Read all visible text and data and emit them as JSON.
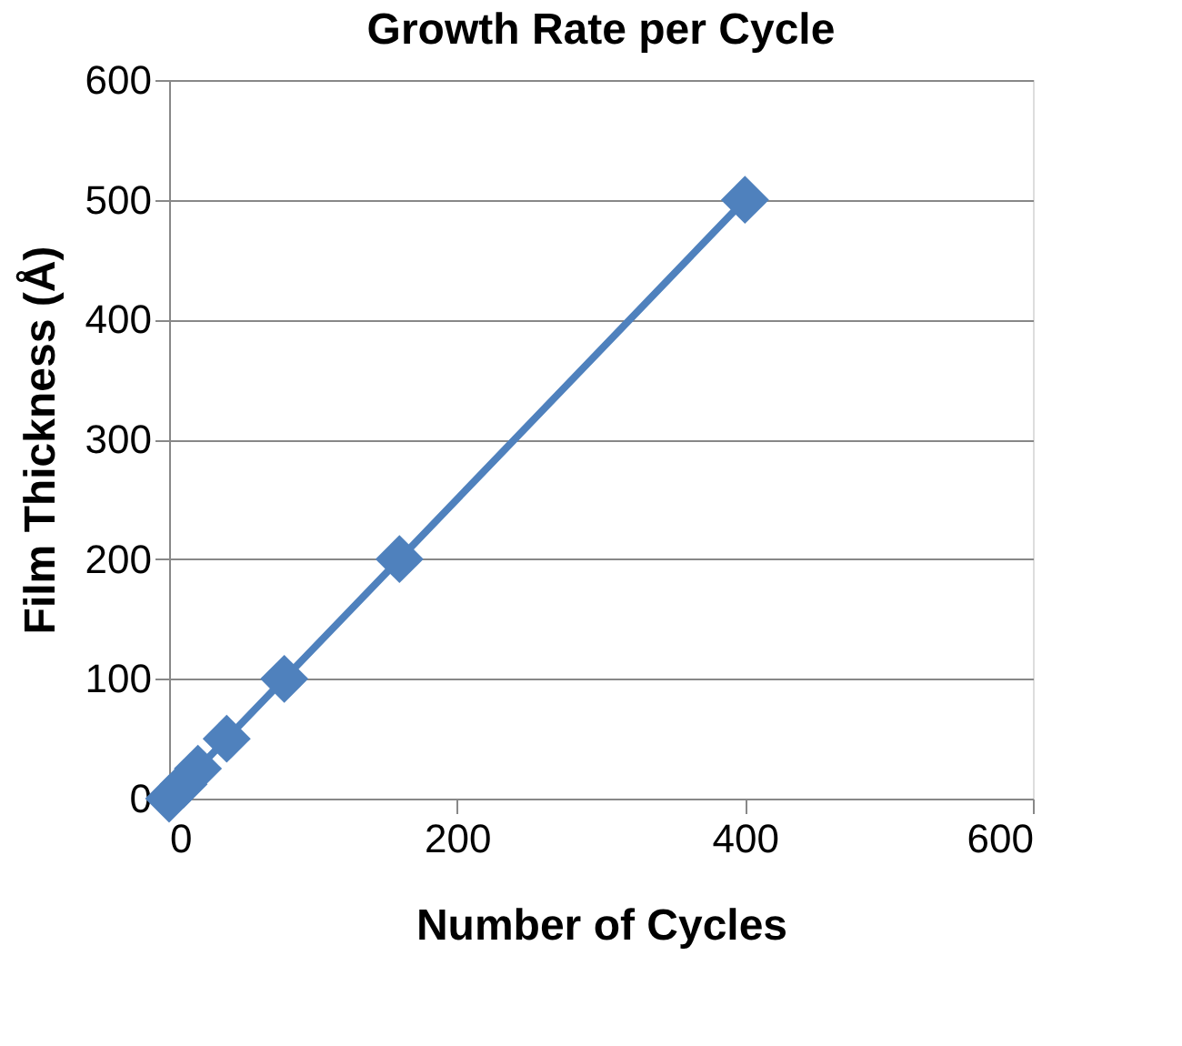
{
  "chart_data": {
    "type": "line",
    "title": "Growth Rate per Cycle",
    "xlabel": "Number of Cycles",
    "ylabel": "Film Thickness (Å)",
    "x": [
      0,
      10,
      20,
      40,
      80,
      160,
      400
    ],
    "series": [
      {
        "color": "#4f81bd",
        "values": [
          0,
          12,
          25,
          50,
          100,
          200,
          500
        ]
      }
    ],
    "xlim": [
      0,
      600
    ],
    "xticks": [
      0,
      200,
      400,
      600
    ],
    "ylim": [
      0,
      600
    ],
    "yticks": [
      0,
      100,
      200,
      300,
      400,
      500,
      600
    ],
    "grid": "y",
    "marker": "diamond",
    "line_style": "solid"
  }
}
